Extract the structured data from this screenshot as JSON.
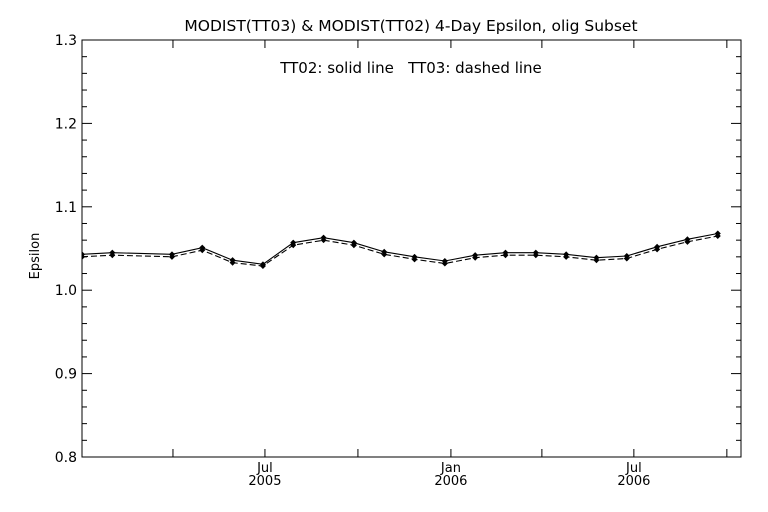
{
  "chart_data": {
    "type": "line",
    "title": "MODIST(TT03) & MODIST(TT02) 4-Day Epsilon, olig Subset",
    "annotation": "TT02: solid line   TT03: dashed line",
    "ylabel": "Epsilon",
    "xlabel": "",
    "ylim": [
      0.8,
      1.3
    ],
    "yticks": [
      "0.8",
      "0.9",
      "1.0",
      "1.1",
      "1.2",
      "1.3"
    ],
    "xlim": [
      "2005-01-01",
      "2006-10-15"
    ],
    "xticks": [
      {
        "date": "2005-07-01",
        "label": "Jul",
        "year": "2005"
      },
      {
        "date": "2006-01-01",
        "label": "Jan",
        "year": "2006"
      },
      {
        "date": "2006-07-01",
        "label": "Jul",
        "year": "2006"
      }
    ],
    "grid": false,
    "series": [
      {
        "name": "TT02",
        "style": "solid",
        "x": [
          "2005-01-01",
          "2005-01-31",
          "2005-03-31",
          "2005-04-30",
          "2005-05-30",
          "2005-06-29",
          "2005-07-29",
          "2005-08-28",
          "2005-09-27",
          "2005-10-27",
          "2005-11-26",
          "2005-12-26",
          "2006-01-25",
          "2006-02-24",
          "2006-03-26",
          "2006-04-25",
          "2006-05-25",
          "2006-06-24",
          "2006-07-24",
          "2006-08-23",
          "2006-09-22"
        ],
        "values": [
          1.043,
          1.045,
          1.043,
          1.051,
          1.036,
          1.031,
          1.057,
          1.063,
          1.057,
          1.046,
          1.04,
          1.035,
          1.042,
          1.045,
          1.045,
          1.043,
          1.039,
          1.041,
          1.052,
          1.061,
          1.068
        ]
      },
      {
        "name": "TT03",
        "style": "dashed",
        "x": [
          "2005-01-01",
          "2005-01-31",
          "2005-03-31",
          "2005-04-30",
          "2005-05-30",
          "2005-06-29",
          "2005-07-29",
          "2005-08-28",
          "2005-09-27",
          "2005-10-27",
          "2005-11-26",
          "2005-12-26",
          "2006-01-25",
          "2006-02-24",
          "2006-03-26",
          "2006-04-25",
          "2006-05-25",
          "2006-06-24",
          "2006-07-24",
          "2006-08-23",
          "2006-09-22"
        ],
        "values": [
          1.04,
          1.042,
          1.04,
          1.048,
          1.033,
          1.029,
          1.054,
          1.06,
          1.054,
          1.043,
          1.037,
          1.032,
          1.039,
          1.042,
          1.042,
          1.04,
          1.036,
          1.038,
          1.049,
          1.058,
          1.065
        ]
      }
    ]
  }
}
